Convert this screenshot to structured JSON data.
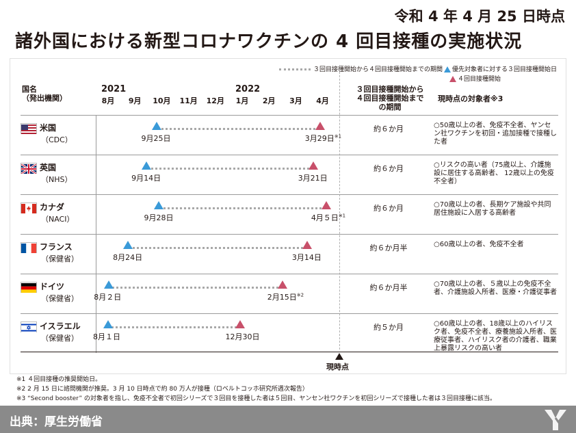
{
  "header": {
    "date": "令和 4 年 4 月 25 日時点",
    "title": "諸外国における新型コロナワクチンの 4 回目接種の実施状況"
  },
  "legend": {
    "period_label": "３回目接種開始から４回目接種開始までの期間",
    "third_label": "優先対象者に対する３回目接種開始日",
    "fourth_label": "４回目接種開始"
  },
  "columns": {
    "country_line1": "国名",
    "country_line2": "（発出機関）",
    "period_line1": "３回目接種開始から",
    "period_line2": "４回目接種開始まで",
    "period_line3": "の期間",
    "target": "現時点の対象者※3"
  },
  "timeline": {
    "years": [
      {
        "label": "2021",
        "month_index": 0
      },
      {
        "label": "2022",
        "month_index": 5
      }
    ],
    "months": [
      "8月",
      "9月",
      "10月",
      "11月",
      "12月",
      "1月",
      "2月",
      "3月",
      "4月"
    ],
    "now_label": "現時点",
    "now_date": "2022-04-25"
  },
  "colors": {
    "third_marker": "#3a9ad8",
    "fourth_marker": "#c8506a",
    "dots": "#a8a8a8"
  },
  "chart_data": {
    "type": "timeline",
    "x_start": "2021-08-01",
    "x_end": "2022-04-30",
    "rows": [
      {
        "country": "米国",
        "agency": "（CDC）",
        "flag": "us-flag",
        "third": "2021-09-25",
        "fourth": "2022-03-29",
        "third_label": "9月25日",
        "fourth_label": "3月29日",
        "fourth_note": "※1",
        "period": "約６か月",
        "target": "○50歳以上の者、免疫不全者、ヤンセン社ワクチンを初回・追加接種で接種した者"
      },
      {
        "country": "英国",
        "agency": "（NHS）",
        "flag": "uk-flag",
        "third": "2021-09-14",
        "fourth": "2022-03-21",
        "third_label": "9月14日",
        "fourth_label": "3月21日",
        "fourth_note": "",
        "period": "約６か月",
        "target": "○リスクの高い者（75歳以上、介護施設に居住する高齢者、 12歳以上の免疫不全者）"
      },
      {
        "country": "カナダ",
        "agency": "（NACI）",
        "flag": "canada-flag",
        "third": "2021-09-28",
        "fourth": "2022-04-05",
        "third_label": "9月28日",
        "fourth_label": "4月５日",
        "fourth_note": "※1",
        "period": "約６か月",
        "target": "○70歳以上の者、長期ケア施設や共同居住施設に入居する高齢者"
      },
      {
        "country": "フランス",
        "agency": "（保健省）",
        "flag": "france-flag",
        "third": "2021-08-24",
        "fourth": "2022-03-14",
        "third_label": "8月24日",
        "fourth_label": "3月14日",
        "fourth_note": "",
        "period": "約６か月半",
        "target": "○60歳以上の者、免疫不全者"
      },
      {
        "country": "ドイツ",
        "agency": "（保健省）",
        "flag": "germany-flag",
        "third": "2021-08-02",
        "fourth": "2022-02-15",
        "third_label": "8月２日",
        "fourth_label": "2月15日",
        "fourth_note": "※2",
        "period": "約６か月半",
        "target": "○70歳以上の者、５歳以上の免疫不全者、介護施設入所者、医療・介護従事者"
      },
      {
        "country": "イスラエル",
        "agency": "（保健省）",
        "flag": "israel-flag",
        "third": "2021-08-01",
        "fourth": "2021-12-30",
        "third_label": "8月１日",
        "fourth_label": "12月30日",
        "fourth_note": "",
        "period": "約５か月",
        "target": "○60歳以上の者、18歳以上のハイリスク者、免疫不全者、療養施設入所者、医療従事者、ハイリスク者の介護者、職業上暴露リスクの高い者"
      }
    ]
  },
  "notes": [
    "※1 ４回目接種の推奨開始日。",
    "※2 2 月 15 日に諮問機関が推奨。3 月 10 日時点で約 80 万人が接種（ロベルトコッホ研究所週次報告）",
    "※3 “Second booster” の対象者を指し、免疫不全者で初回シリーズで３回目を接種した者は５回目、ヤンセン社ワクチンを初回シリーズで接種した者は３回目接種に該当。"
  ],
  "footer": {
    "source": "出典：厚生労働省",
    "logo": "company-logo"
  }
}
